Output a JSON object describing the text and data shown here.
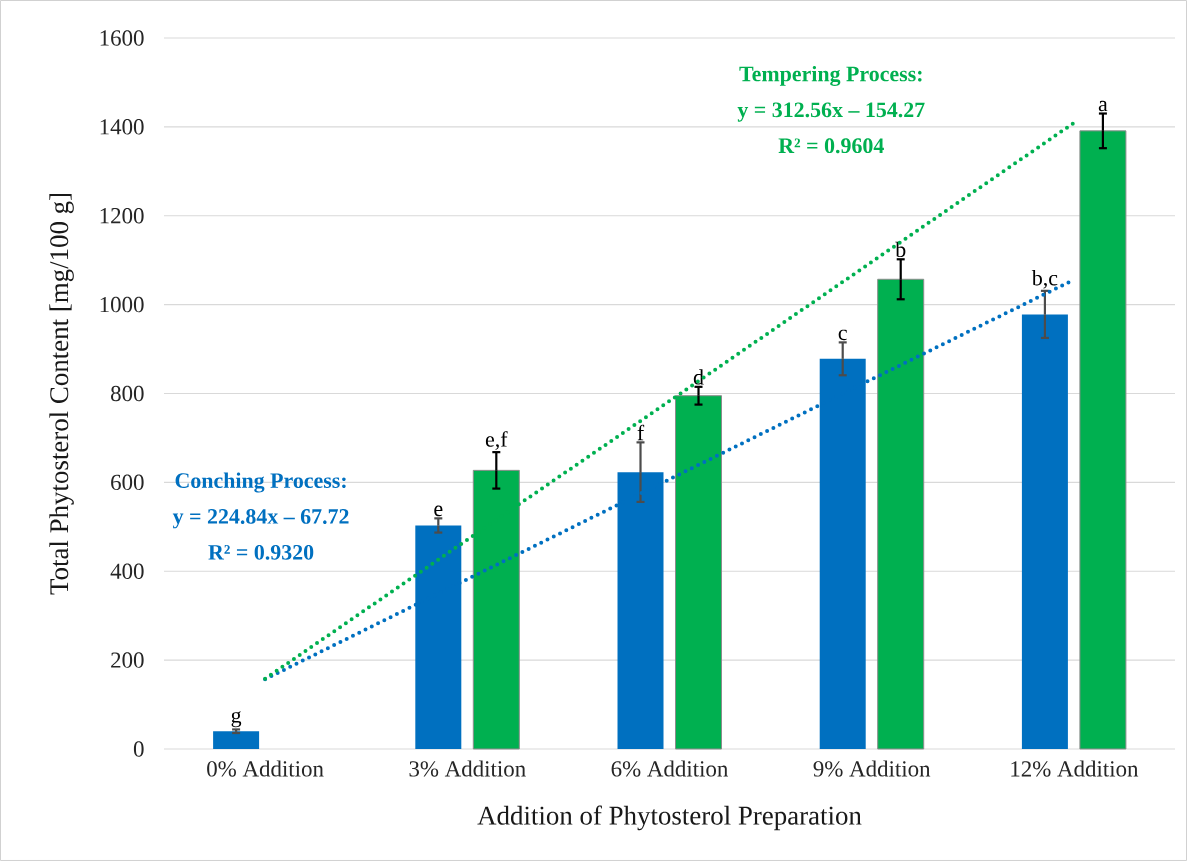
{
  "chart_data": {
    "type": "bar",
    "xlabel": "Addition of Phytosterol Preparation",
    "ylabel": "Total Phytosterol Content [mg/100 g]",
    "categories": [
      "0% Addition",
      "3% Addition",
      "6% Addition",
      "9% Addition",
      "12% Addition"
    ],
    "series": [
      {
        "color": "#0070c0",
        "values": [
          40,
          503,
          623,
          878,
          978
        ],
        "errors": [
          4,
          16,
          67,
          37,
          53
        ],
        "value_labels": [
          "g",
          "e",
          "f",
          "c",
          "b,c"
        ]
      },
      {
        "color": "#00b050",
        "values": [
          null,
          627,
          795,
          1057,
          1391
        ],
        "errors": [
          null,
          41,
          20,
          45,
          39
        ],
        "value_labels": [
          null,
          "e,f",
          "d",
          "b",
          "a"
        ]
      },
      {
        "type": "line",
        "values": [
          157,
          382,
          607,
          832,
          1056
        ],
        "color": "#0070c0",
        "line_style": "dotted"
      },
      {
        "type": "line",
        "values": [
          158,
          471,
          783,
          1096,
          1409
        ],
        "color": "#00b050",
        "line_style": "dotted"
      }
    ],
    "annotations": [
      "Conching Process:",
      "y = 224.84x – 67.72",
      "R² = 0.9320",
      "Tempering Process:",
      "y = 312.56x – 154.27",
      "R² = 0.9604"
    ],
    "ylim": [
      0,
      1600
    ],
    "yticks": [
      0,
      200,
      400,
      600,
      800,
      1000,
      1200,
      1400,
      1600
    ],
    "grid": "y"
  }
}
